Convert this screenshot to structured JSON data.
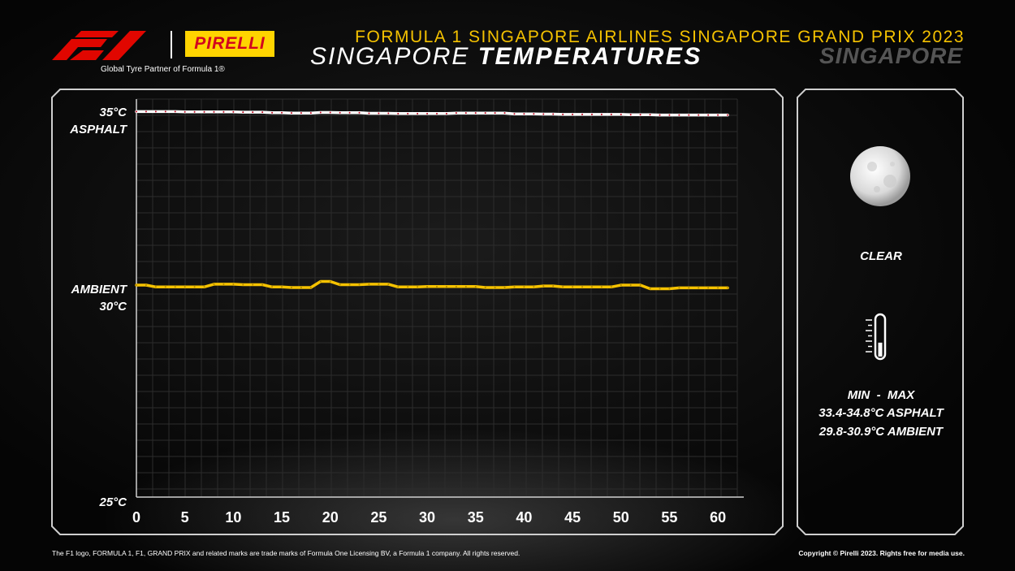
{
  "header": {
    "partner_text": "Global Tyre Partner of Formula 1®",
    "pirelli_wordmark": "PIRELLI",
    "event_title": "FORMULA 1 SINGAPORE AIRLINES SINGAPORE GRAND PRIX 2023",
    "title_light": "SINGAPORE",
    "title_bold": "TEMPERATURES",
    "location_ghost": "SINGAPORE"
  },
  "colors": {
    "accent_yellow": "#f5c200",
    "asphalt_line": "#ffffff",
    "ambient_line": "#f5c200",
    "pirelli_red": "#d2001e"
  },
  "y_labels": {
    "top_value": "35°C",
    "top_name": "ASPHALT",
    "mid_name": "AMBIENT",
    "mid_value": "30°C",
    "bottom_value": "25°C"
  },
  "chart_data": {
    "type": "line",
    "xlim": [
      0,
      62
    ],
    "x_ticks": [
      "0",
      "5",
      "10",
      "15",
      "20",
      "25",
      "30",
      "35",
      "40",
      "45",
      "50",
      "55",
      "60"
    ],
    "y_ticks_shown": [
      "35°C",
      "30°C",
      "25°C"
    ],
    "series": [
      {
        "name": "ASPHALT",
        "scale_ylim": [
          25,
          35
        ],
        "x": [
          0,
          1,
          2,
          3,
          4,
          5,
          6,
          7,
          8,
          9,
          10,
          11,
          12,
          13,
          14,
          15,
          16,
          17,
          18,
          19,
          20,
          21,
          22,
          23,
          24,
          25,
          26,
          27,
          28,
          29,
          30,
          31,
          32,
          33,
          34,
          35,
          36,
          37,
          38,
          39,
          40,
          41,
          42,
          43,
          44,
          45,
          46,
          47,
          48,
          49,
          50,
          51,
          52,
          53,
          54,
          55,
          56,
          57,
          58,
          59,
          60,
          61
        ],
        "values": [
          34.8,
          34.8,
          34.8,
          34.8,
          34.8,
          34.75,
          34.75,
          34.75,
          34.75,
          34.75,
          34.75,
          34.7,
          34.7,
          34.7,
          34.6,
          34.6,
          34.55,
          34.55,
          34.55,
          34.65,
          34.65,
          34.6,
          34.6,
          34.6,
          34.5,
          34.5,
          34.5,
          34.45,
          34.45,
          34.45,
          34.45,
          34.45,
          34.45,
          34.55,
          34.55,
          34.55,
          34.55,
          34.55,
          34.55,
          34.4,
          34.4,
          34.4,
          34.35,
          34.35,
          34.3,
          34.3,
          34.3,
          34.3,
          34.3,
          34.3,
          34.3,
          34.25,
          34.25,
          34.25,
          34.2,
          34.2,
          34.2,
          34.2,
          34.2,
          34.2,
          34.2,
          34.2
        ]
      },
      {
        "name": "AMBIENT",
        "scale_ylim": [
          29.1,
          31.3
        ],
        "x": [
          0,
          1,
          2,
          3,
          4,
          5,
          6,
          7,
          8,
          9,
          10,
          11,
          12,
          13,
          14,
          15,
          16,
          17,
          18,
          19,
          20,
          21,
          22,
          23,
          24,
          25,
          26,
          27,
          28,
          29,
          30,
          31,
          32,
          33,
          34,
          35,
          36,
          37,
          38,
          39,
          40,
          41,
          42,
          43,
          44,
          45,
          46,
          47,
          48,
          49,
          50,
          51,
          52,
          53,
          54,
          55,
          56,
          57,
          58,
          59,
          60,
          61
        ],
        "values": [
          30.2,
          30.2,
          30.1,
          30.1,
          30.1,
          30.1,
          30.1,
          30.1,
          30.25,
          30.25,
          30.25,
          30.22,
          30.22,
          30.22,
          30.1,
          30.1,
          30.07,
          30.07,
          30.07,
          30.4,
          30.4,
          30.22,
          30.22,
          30.22,
          30.25,
          30.25,
          30.25,
          30.1,
          30.1,
          30.1,
          30.12,
          30.12,
          30.12,
          30.12,
          30.12,
          30.12,
          30.07,
          30.07,
          30.07,
          30.1,
          30.1,
          30.1,
          30.15,
          30.15,
          30.1,
          30.1,
          30.1,
          30.1,
          30.1,
          30.1,
          30.2,
          30.2,
          30.2,
          30.0,
          30.0,
          30.0,
          30.05,
          30.05,
          30.05,
          30.05,
          30.05,
          30.05
        ]
      }
    ]
  },
  "side_panel": {
    "weather_icon": "moon-icon",
    "condition": "CLEAR",
    "thermometer_icon": "thermometer-icon",
    "minmax_header": "MIN  -  MAX",
    "asphalt_range": "33.4-34.8°C ASPHALT",
    "ambient_range": "29.8-30.9°C AMBIENT",
    "thermometer_level": 0.35
  },
  "footer": {
    "left": "The F1 logo, FORMULA 1, F1, GRAND PRIX and related marks are trade marks of Formula One Licensing BV, a Formula 1 company. All rights reserved.",
    "right": "Copyright © Pirelli 2023. Rights free for media use."
  }
}
